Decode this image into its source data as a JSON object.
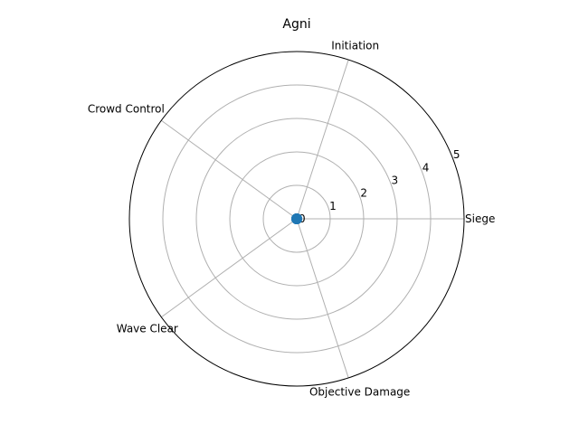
{
  "chart_data": {
    "type": "radar",
    "title": "Agni",
    "categories": [
      "Siege",
      "Initiation",
      "Crowd Control",
      "Wave Clear",
      "Objective Damage"
    ],
    "series": [
      {
        "values": [
          0,
          0,
          0,
          0,
          0
        ],
        "color": "#1f77b4"
      }
    ],
    "r_ticks": [
      "0",
      "1",
      "2",
      "3",
      "4",
      "5"
    ],
    "rlim": [
      0,
      5
    ],
    "grid": true,
    "grid_color": "#b0b0b0",
    "frame_color": "#000000"
  }
}
